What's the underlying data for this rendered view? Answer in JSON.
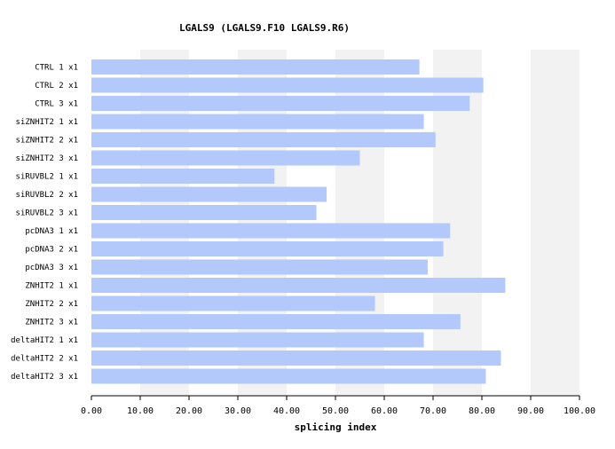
{
  "chart_data": {
    "type": "bar",
    "orientation": "horizontal",
    "title": "LGALS9 (LGALS9.F10  LGALS9.R6)",
    "xlabel": "splicing index",
    "ylabel": "",
    "xlim": [
      0,
      100
    ],
    "x_ticks": [
      "0.00",
      "10.00",
      "20.00",
      "30.00",
      "40.00",
      "50.00",
      "60.00",
      "70.00",
      "80.00",
      "90.00",
      "100.00"
    ],
    "background_bands": "alternating",
    "bar_color": "#b3c9fb",
    "band_color": "#f2f2f2",
    "categories": [
      "CTRL 1 x1",
      "CTRL 2 x1",
      "CTRL 3 x1",
      "siZNHIT2 1 x1",
      "siZNHIT2 2 x1",
      "siZNHIT2 3 x1",
      "siRUVBL2 1 x1",
      "siRUVBL2 2 x1",
      "siRUVBL2 3 x1",
      "pcDNA3 1 x1",
      "pcDNA3 2 x1",
      "pcDNA3 3 x1",
      "ZNHIT2 1 x1",
      "ZNHIT2 2 x1",
      "ZNHIT2 3 x1",
      "deltaHIT2 1 x1",
      "deltaHIT2 2 x1",
      "deltaHIT2 3 x1"
    ],
    "values": [
      67.2,
      80.3,
      77.5,
      68.1,
      70.5,
      55.0,
      37.5,
      48.2,
      46.1,
      73.5,
      72.1,
      68.9,
      84.8,
      58.1,
      75.6,
      68.1,
      83.9,
      80.8
    ]
  }
}
